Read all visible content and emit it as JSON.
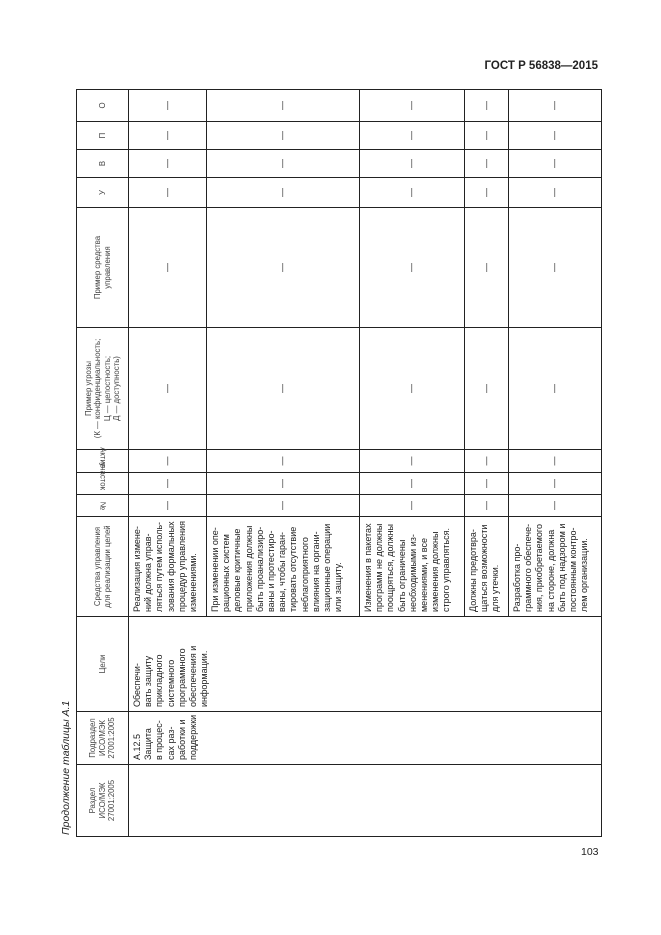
{
  "header": {
    "doc_code": "ГОСТ Р 56838—2015"
  },
  "caption": "Продолжение таблицы А.1",
  "columns": [
    "Раздел\nИСО/МЭК\n27001:2005",
    "Подраздел\nИСО/МЭК\n27001:2005",
    "Цели",
    "Средства управления\nдля реализации целей",
    "№",
    "участок",
    "Актив",
    "Пример угрозы\n(К — конфиденциальность;\nЦ — целостность;\nД — доступность)",
    "Пример средства\nуправления",
    "У",
    "В",
    "П",
    "О"
  ],
  "section": "",
  "subsection": "А.12.5\nЗащита\nв процес-\nсах раз-\nработки и\nподдержки",
  "goal": "Обеспечи-\nвать защиту\nприкладного\nсистемного\nпрограммного\nобеспечения и\nинформации.",
  "rows": [
    {
      "control": "Реализация измене-\nний должна управ-\nляться путем исполь-\nзования формальных\nпроцедур управления\nизменениями.",
      "dash": "—"
    },
    {
      "control": "При изменении опе-\nрационных систем\nделовые критичные\nприложения должны\nбыть проанализиро-\nваны и протестиро-\nваны, чтобы гаран-\nтировать отсутствие\nнеблагоприятного\nвлияния на органи-\nзационные операции\nили защиту.",
      "dash": "—"
    },
    {
      "control": "Изменения в пакетах\nпрограмм не должны\nпоощряться, должны\nбыть ограничены\nнеобходимыми из-\nменениями, и все\nизменения должны\nстрого управляться.",
      "dash": "—"
    },
    {
      "control": "Должны предотвра-\nщаться возможности\nдля утечки.",
      "dash": "—"
    },
    {
      "control": "Разработка про-\nграммного обеспече-\nния, приобретаемого\nна стороне, должна\nбыть под надзором и\nпостоянным контро-\nлем организации.",
      "dash": "—"
    }
  ],
  "page_number": "103"
}
